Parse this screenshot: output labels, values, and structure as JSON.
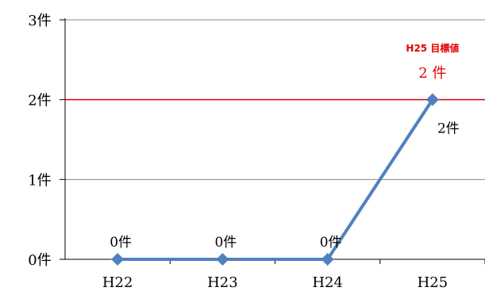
{
  "chart_data": {
    "type": "line",
    "categories": [
      "H22",
      "H23",
      "H24",
      "H25"
    ],
    "series": [
      {
        "values": [
          0,
          0,
          0,
          2
        ],
        "color": "#4f81bd",
        "data_labels": [
          "0件",
          "0件",
          "0件",
          "2件"
        ]
      }
    ],
    "y_ticks": [
      {
        "value": 0,
        "label": "0件"
      },
      {
        "value": 1,
        "label": "1件"
      },
      {
        "value": 2,
        "label": "2件"
      },
      {
        "value": 3,
        "label": "3件"
      }
    ],
    "ylim": [
      0,
      3
    ],
    "grid": true,
    "target_line": {
      "value": 2,
      "title": "H25 目標値",
      "label": "2 件",
      "color": "#e00000"
    },
    "colors": {
      "grid": "#888888",
      "axis": "#000000"
    }
  }
}
